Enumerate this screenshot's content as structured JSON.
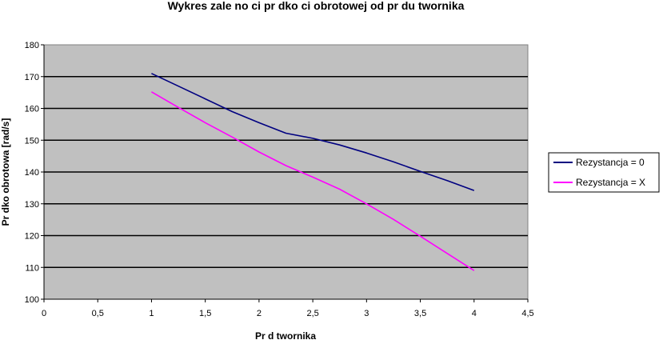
{
  "chart_data": {
    "type": "line",
    "title": "Wykres zale  no  ci pr  dko  ci obrotowej od pr  du twornika",
    "xlabel": "Pr  d twornika",
    "ylabel": "Pr  dko    obrotowa [rad/s]",
    "xlim": [
      0,
      4.5
    ],
    "ylim": [
      100,
      180
    ],
    "x_ticks": [
      "0",
      "0,5",
      "1",
      "1,5",
      "2",
      "2,5",
      "3",
      "3,5",
      "4",
      "4,5"
    ],
    "y_ticks": [
      "100",
      "110",
      "120",
      "130",
      "140",
      "150",
      "160",
      "170",
      "180"
    ],
    "grid": "horizontal",
    "plot_background": "#c0c0c0",
    "legend_position": "right",
    "series": [
      {
        "name": "Rezystancja = 0",
        "color": "#000080",
        "x": [
          1,
          1.25,
          1.5,
          1.75,
          2,
          2.25,
          2.5,
          2.75,
          3,
          3.25,
          3.5,
          3.75,
          4
        ],
        "y": [
          171,
          167,
          163,
          159,
          155.5,
          152.2,
          150.6,
          148.5,
          146,
          143.2,
          140.2,
          137.3,
          134.2
        ]
      },
      {
        "name": "Rezystancja = X",
        "color": "#ff00ff",
        "x": [
          1,
          1.25,
          1.5,
          1.75,
          2,
          2.25,
          2.5,
          2.75,
          3,
          3.25,
          3.5,
          3.75,
          4
        ],
        "y": [
          165.2,
          160.3,
          155.5,
          151,
          146.3,
          142,
          138.4,
          134.6,
          130,
          125.1,
          119.8,
          114.4,
          109
        ]
      }
    ]
  }
}
